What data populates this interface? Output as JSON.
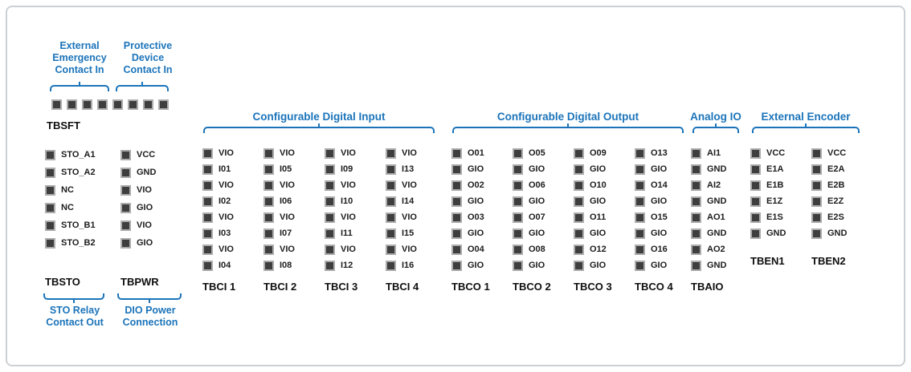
{
  "colors": {
    "accent": "#1b74ba",
    "pin_fill": "#3e3e3e",
    "pin_border": "#acacac"
  },
  "tbsft": {
    "name": "TBSFT",
    "pin_count": 8,
    "labels": [
      "External\nEmergency\nContact In",
      "Protective\nDevice\nContact In"
    ]
  },
  "left_blocks": [
    {
      "name": "TBSTO",
      "pins": [
        "STO_A1",
        "STO_A2",
        "NC",
        "NC",
        "STO_B1",
        "STO_B2"
      ],
      "footer_label": "STO Relay\nContact Out"
    },
    {
      "name": "TBPWR",
      "pins": [
        "VCC",
        "GND",
        "VIO",
        "GIO",
        "VIO",
        "GIO"
      ],
      "footer_label": "DIO Power\nConnection"
    }
  ],
  "groups": [
    {
      "title": "Configurable Digital Input",
      "columns": [
        {
          "name": "TBCI 1",
          "pins": [
            "VIO",
            "I01",
            "VIO",
            "I02",
            "VIO",
            "I03",
            "VIO",
            "I04"
          ]
        },
        {
          "name": "TBCI 2",
          "pins": [
            "VIO",
            "I05",
            "VIO",
            "I06",
            "VIO",
            "I07",
            "VIO",
            "I08"
          ]
        },
        {
          "name": "TBCI 3",
          "pins": [
            "VIO",
            "I09",
            "VIO",
            "I10",
            "VIO",
            "I11",
            "VIO",
            "I12"
          ]
        },
        {
          "name": "TBCI 4",
          "pins": [
            "VIO",
            "I13",
            "VIO",
            "I14",
            "VIO",
            "I15",
            "VIO",
            "I16"
          ]
        }
      ]
    },
    {
      "title": "Configurable Digital Output",
      "columns": [
        {
          "name": "TBCO 1",
          "pins": [
            "O01",
            "GIO",
            "O02",
            "GIO",
            "O03",
            "GIO",
            "O04",
            "GIO"
          ]
        },
        {
          "name": "TBCO 2",
          "pins": [
            "O05",
            "GIO",
            "O06",
            "GIO",
            "O07",
            "GIO",
            "O08",
            "GIO"
          ]
        },
        {
          "name": "TBCO 3",
          "pins": [
            "O09",
            "GIO",
            "O10",
            "GIO",
            "O11",
            "GIO",
            "O12",
            "GIO"
          ]
        },
        {
          "name": "TBCO 4",
          "pins": [
            "O13",
            "GIO",
            "O14",
            "GIO",
            "O15",
            "GIO",
            "O16",
            "GIO"
          ]
        }
      ]
    },
    {
      "title": "Analog IO",
      "columns": [
        {
          "name": "TBAIO",
          "pins": [
            "AI1",
            "GND",
            "AI2",
            "GND",
            "AO1",
            "GND",
            "AO2",
            "GND"
          ]
        }
      ]
    },
    {
      "title": "External Encoder",
      "columns": [
        {
          "name": "TBEN1",
          "pins": [
            "VCC",
            "E1A",
            "E1B",
            "E1Z",
            "E1S",
            "GND"
          ]
        },
        {
          "name": "TBEN2",
          "pins": [
            "VCC",
            "E2A",
            "E2B",
            "E2Z",
            "E2S",
            "GND"
          ]
        }
      ]
    }
  ]
}
